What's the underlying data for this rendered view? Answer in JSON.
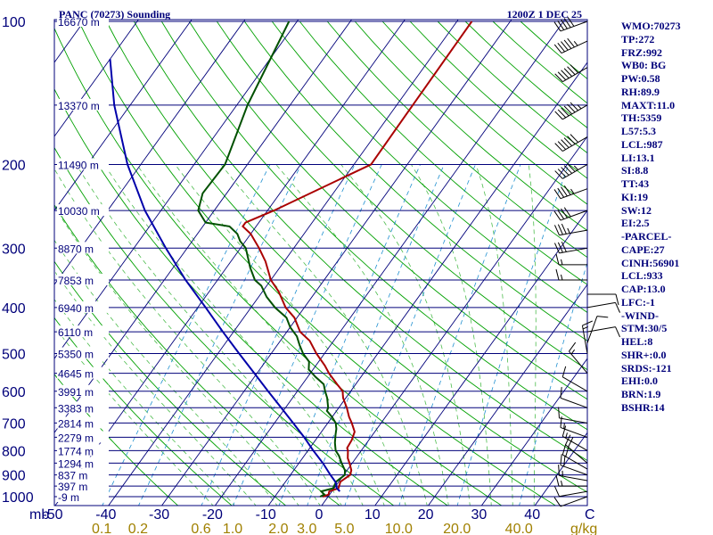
{
  "chart_data": {
    "type": "skew-t log-p sounding",
    "title": "PANC (70273) Sounding",
    "datetime": "1200Z  1 DEC 25",
    "pressure_axis": {
      "label": "mb",
      "range_mb": [
        1000,
        100
      ],
      "ticks": [
        100,
        200,
        300,
        400,
        500,
        600,
        700,
        800,
        900,
        1000
      ]
    },
    "temperature_axis": {
      "label": "C",
      "range_c_at_1050mb": [
        -50,
        50
      ],
      "ticks": [
        -50,
        -40,
        -30,
        -20,
        -10,
        0,
        10,
        20,
        30,
        40
      ]
    },
    "mixing_ratio_axis": {
      "label": "g/kg",
      "ticks": [
        "0.1",
        "0.2",
        "0.6",
        "1.0",
        "2.0",
        "3.0",
        "5.0",
        "10.0",
        "20.0",
        "40.0"
      ]
    },
    "height_labels": [
      {
        "p": 100,
        "label": "16670 m"
      },
      {
        "p": 150,
        "label": "13370 m"
      },
      {
        "p": 200,
        "label": "11490 m"
      },
      {
        "p": 250,
        "label": "10030 m"
      },
      {
        "p": 300,
        "label": "8870 m"
      },
      {
        "p": 350,
        "label": "7853 m"
      },
      {
        "p": 400,
        "label": "6940 m"
      },
      {
        "p": 450,
        "label": "6110 m"
      },
      {
        "p": 500,
        "label": "5350 m"
      },
      {
        "p": 550,
        "label": "4645 m"
      },
      {
        "p": 600,
        "label": "3991 m"
      },
      {
        "p": 650,
        "label": "3383 m"
      },
      {
        "p": 700,
        "label": "2814 m"
      },
      {
        "p": 750,
        "label": "2279 m"
      },
      {
        "p": 800,
        "label": "1774 m"
      },
      {
        "p": 850,
        "label": "1294 m"
      },
      {
        "p": 900,
        "label": "837 m"
      },
      {
        "p": 950,
        "label": "397 m"
      },
      {
        "p": 1000,
        "label": "-9 m"
      }
    ],
    "series": [
      {
        "name": "Temperature",
        "color": "#aa0000",
        "points": [
          [
            1000,
            -1.0
          ],
          [
            990,
            -0.2
          ],
          [
            975,
            -0.5
          ],
          [
            960,
            0.8
          ],
          [
            930,
            0.3
          ],
          [
            900,
            1.2
          ],
          [
            880,
            0.8
          ],
          [
            850,
            -0.5
          ],
          [
            830,
            -1.5
          ],
          [
            800,
            -2.5
          ],
          [
            790,
            -3.0
          ],
          [
            760,
            -3.2
          ],
          [
            730,
            -3.8
          ],
          [
            700,
            -5.5
          ],
          [
            680,
            -6.8
          ],
          [
            650,
            -8.5
          ],
          [
            620,
            -10.5
          ],
          [
            610,
            -11.0
          ],
          [
            600,
            -11.5
          ],
          [
            580,
            -13.5
          ],
          [
            550,
            -16.5
          ],
          [
            530,
            -18.3
          ],
          [
            500,
            -21.5
          ],
          [
            470,
            -24.5
          ],
          [
            450,
            -27.5
          ],
          [
            420,
            -30.5
          ],
          [
            400,
            -33.5
          ],
          [
            370,
            -37.0
          ],
          [
            350,
            -40.0
          ],
          [
            320,
            -43.5
          ],
          [
            300,
            -46.5
          ],
          [
            280,
            -50.0
          ],
          [
            270,
            -52.5
          ],
          [
            265,
            -52.5
          ],
          [
            250,
            -48.8
          ],
          [
            200,
            -36.8
          ],
          [
            150,
            -37.0
          ],
          [
            100,
            -37.2
          ]
        ]
      },
      {
        "name": "Dewpoint",
        "color": "#005000",
        "points": [
          [
            1000,
            -1.5
          ],
          [
            990,
            -1.0
          ],
          [
            975,
            -2.0
          ],
          [
            960,
            -0.2
          ],
          [
            930,
            -0.5
          ],
          [
            900,
            0.2
          ],
          [
            880,
            -0.4
          ],
          [
            850,
            -2.0
          ],
          [
            820,
            -3.5
          ],
          [
            800,
            -4.8
          ],
          [
            770,
            -6.0
          ],
          [
            740,
            -7.0
          ],
          [
            720,
            -7.6
          ],
          [
            700,
            -8.5
          ],
          [
            680,
            -10.0
          ],
          [
            660,
            -11.8
          ],
          [
            650,
            -12.0
          ],
          [
            620,
            -13.5
          ],
          [
            600,
            -14.8
          ],
          [
            580,
            -16.0
          ],
          [
            560,
            -18.5
          ],
          [
            540,
            -20.8
          ],
          [
            520,
            -21.8
          ],
          [
            500,
            -24.0
          ],
          [
            480,
            -25.8
          ],
          [
            460,
            -27.5
          ],
          [
            440,
            -30.0
          ],
          [
            420,
            -32.0
          ],
          [
            400,
            -35.5
          ],
          [
            380,
            -38.5
          ],
          [
            360,
            -41.0
          ],
          [
            350,
            -43.0
          ],
          [
            330,
            -45.5
          ],
          [
            300,
            -49.0
          ],
          [
            290,
            -51.0
          ],
          [
            280,
            -52.5
          ],
          [
            270,
            -55.0
          ],
          [
            265,
            -60.0
          ],
          [
            250,
            -63.0
          ],
          [
            230,
            -64.5
          ],
          [
            200,
            -64.2
          ],
          [
            150,
            -68.0
          ],
          [
            100,
            -71.5
          ]
        ]
      },
      {
        "name": "Parcel",
        "color": "#0000aa",
        "points": [
          [
            975,
            1.5
          ],
          [
            960,
            0.5
          ],
          [
            933,
            -0.5
          ],
          [
            900,
            -2.5
          ],
          [
            850,
            -5.5
          ],
          [
            800,
            -9.0
          ],
          [
            750,
            -12.5
          ],
          [
            700,
            -16.5
          ],
          [
            650,
            -20.8
          ],
          [
            600,
            -25.5
          ],
          [
            550,
            -30.5
          ],
          [
            500,
            -36.0
          ],
          [
            450,
            -42.0
          ],
          [
            400,
            -48.5
          ],
          [
            350,
            -56.0
          ],
          [
            300,
            -64.0
          ],
          [
            250,
            -73.0
          ],
          [
            200,
            -82.5
          ],
          [
            150,
            -93.0
          ],
          [
            120,
            -100.0
          ]
        ]
      }
    ],
    "wind_barbs": [
      {
        "p": 1000,
        "dir": 250,
        "kt": 10
      },
      {
        "p": 975,
        "dir": 260,
        "kt": 10
      },
      {
        "p": 950,
        "dir": 270,
        "kt": 15
      },
      {
        "p": 925,
        "dir": 280,
        "kt": 15
      },
      {
        "p": 900,
        "dir": 290,
        "kt": 20
      },
      {
        "p": 875,
        "dir": 300,
        "kt": 20
      },
      {
        "p": 850,
        "dir": 310,
        "kt": 20
      },
      {
        "p": 800,
        "dir": 300,
        "kt": 15
      },
      {
        "p": 750,
        "dir": 290,
        "kt": 15
      },
      {
        "p": 700,
        "dir": 280,
        "kt": 10
      },
      {
        "p": 650,
        "dir": 290,
        "kt": 10
      },
      {
        "p": 600,
        "dir": 300,
        "kt": 10
      },
      {
        "p": 550,
        "dir": 320,
        "kt": 15
      },
      {
        "p": 500,
        "dir": 350,
        "kt": 15
      },
      {
        "p": 475,
        "dir": 20,
        "kt": 10
      },
      {
        "p": 450,
        "dir": 80,
        "kt": 10
      },
      {
        "p": 400,
        "dir": 80,
        "kt": 10
      },
      {
        "p": 375,
        "dir": 90,
        "kt": 10
      },
      {
        "p": 350,
        "dir": 270,
        "kt": 15
      },
      {
        "p": 325,
        "dir": 270,
        "kt": 15
      },
      {
        "p": 300,
        "dir": 260,
        "kt": 30
      },
      {
        "p": 275,
        "dir": 260,
        "kt": 35
      },
      {
        "p": 250,
        "dir": 250,
        "kt": 40
      },
      {
        "p": 225,
        "dir": 250,
        "kt": 45
      },
      {
        "p": 200,
        "dir": 240,
        "kt": 55
      },
      {
        "p": 175,
        "dir": 240,
        "kt": 60
      },
      {
        "p": 150,
        "dir": 240,
        "kt": 65
      },
      {
        "p": 125,
        "dir": 240,
        "kt": 60
      },
      {
        "p": 110,
        "dir": 245,
        "kt": 55
      },
      {
        "p": 100,
        "dir": 250,
        "kt": 50
      }
    ],
    "colors": {
      "isobar": "#00007a",
      "isotherm": "#00007a",
      "dry_adiabat": "#00a000",
      "moist_adiabat": "#00a000",
      "mixing_ratio": "#2090d0",
      "temperature": "#aa0000",
      "dewpoint": "#005000",
      "parcel": "#0000aa",
      "label_text": "#00007a",
      "mixing_label": "#a08000"
    }
  },
  "indices": [
    "WMO:70273",
    "TP:272",
    "FRZ:992",
    "WB0: BG",
    "PW:0.58",
    "RH:89.9",
    "MAXT:11.0",
    "TH:5359",
    "L57:5.3",
    "LCL:987",
    "LI:13.1",
    "SI:8.8",
    "TT:43",
    "KI:19",
    "SW:12",
    "EI:2.5",
    "-PARCEL-",
    "CAPE:27",
    "CINH:56901",
    "LCL:933",
    "CAP:13.0",
    "LFC:-1",
    "-WIND-",
    "STM:30/5",
    "HEL:8",
    "SHR+:0.0",
    "SRDS:-121",
    "EHI:0.0",
    "BRN:1.9",
    "BSHR:14"
  ]
}
